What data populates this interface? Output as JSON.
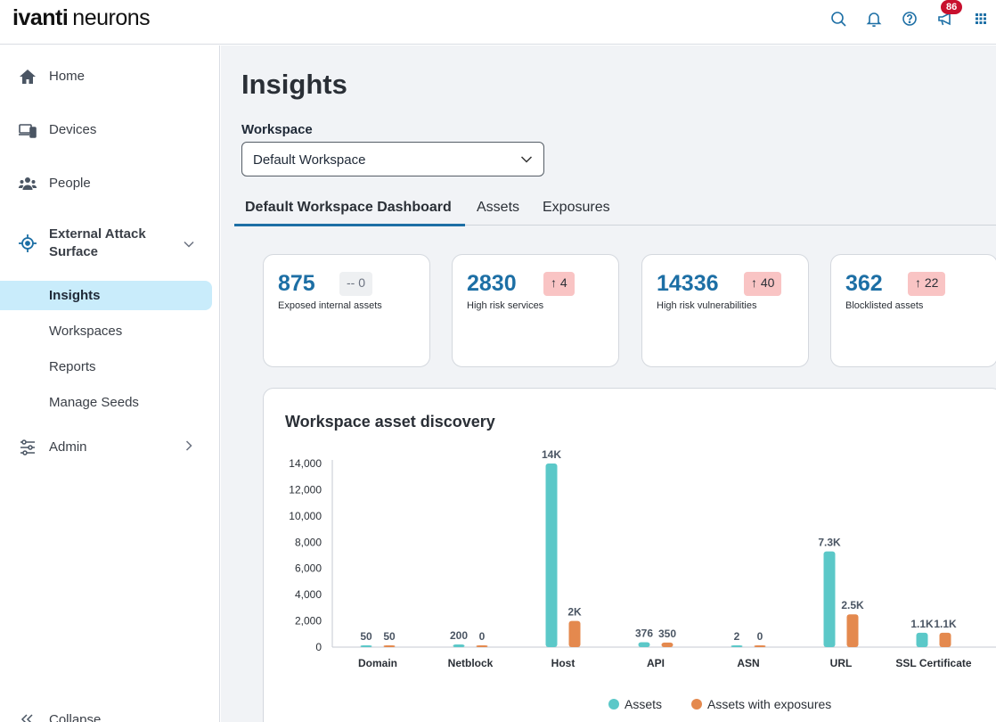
{
  "app": {
    "brand": "ivanti",
    "product": "neurons",
    "notification_count": "86"
  },
  "topbar_icons": [
    "search-icon",
    "bell-icon",
    "help-icon",
    "megaphone-icon",
    "apps-grid-icon"
  ],
  "sidebar": {
    "home": "Home",
    "devices": "Devices",
    "people": "People",
    "external_attack_surface": "External Attack Surface",
    "sub_items": [
      "Insights",
      "Workspaces",
      "Reports",
      "Manage Seeds"
    ],
    "admin": "Admin",
    "collapse": "Collapse"
  },
  "main": {
    "title": "Insights",
    "workspace_label": "Workspace",
    "workspace_value": "Default Workspace",
    "tabs": [
      "Default Workspace Dashboard",
      "Assets",
      "Exposures"
    ],
    "cards": [
      {
        "value": "875",
        "delta": "-- 0",
        "label": "Exposed internal assets"
      },
      {
        "value": "2830",
        "delta": "↑ 4",
        "label": "High risk services"
      },
      {
        "value": "14336",
        "delta": "↑ 40",
        "label": "High risk vulnerabilities"
      },
      {
        "value": "362",
        "delta": "↑ 22",
        "label": "Blocklisted assets"
      }
    ]
  },
  "colors": {
    "accent": "#1d6fa5",
    "assets": "#5bc8c8",
    "exposures": "#e4894e",
    "delta_up_bg": "#f9c4c4"
  },
  "chart_data": {
    "type": "bar",
    "title": "Workspace asset discovery",
    "categories": [
      "Domain",
      "Netblock",
      "Host",
      "API",
      "ASN",
      "URL",
      "SSL Certificate"
    ],
    "series": [
      {
        "name": "Assets",
        "values": [
          50,
          200,
          14000,
          376,
          2,
          7300,
          1100
        ],
        "labels": [
          "50",
          "200",
          "14K",
          "376",
          "2",
          "7.3K",
          "1.1K"
        ]
      },
      {
        "name": "Assets with exposures",
        "values": [
          50,
          0,
          2000,
          350,
          0,
          2500,
          1100
        ],
        "labels": [
          "50",
          "0",
          "2K",
          "350",
          "0",
          "2.5K",
          "1.1K"
        ]
      }
    ],
    "yticks": [
      "14,000",
      "12,000",
      "10,000",
      "8,000",
      "6,000",
      "4,000",
      "2,000",
      "0"
    ],
    "ylim": [
      0,
      14000
    ],
    "legend_position": "bottom",
    "grid": false
  }
}
